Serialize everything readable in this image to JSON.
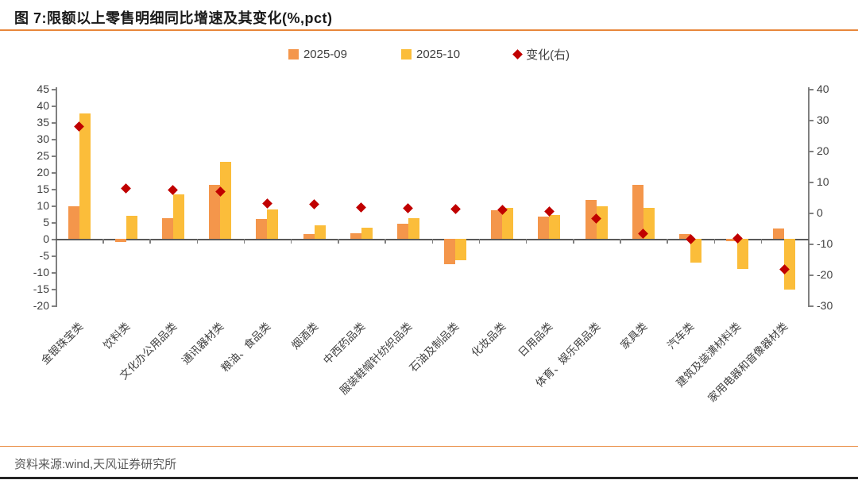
{
  "title": "图 7:限额以上零售明细同比增速及其变化(%,pct)",
  "legend": {
    "items": [
      {
        "label": "2025-09",
        "marker": "square",
        "color": "#F4964B"
      },
      {
        "label": "2025-10",
        "marker": "square",
        "color": "#FBBD3A"
      },
      {
        "label": "变化(右)",
        "marker": "diamond",
        "color": "#C00000"
      }
    ]
  },
  "footer": {
    "source": "资料来源:wind,天风证券研究所"
  },
  "colors": {
    "bar_sep": "#F4964B",
    "bar_oct": "#FBBD3A",
    "change_diamond": "#C00000",
    "rule_orange": "#E8873B",
    "axis_gray": "#808080",
    "text_gray": "#404040"
  },
  "chart_data": {
    "type": "bar",
    "title": "限额以上零售明细同比增速及其变化(%,pct)",
    "categories": [
      "金银珠宝类",
      "饮料类",
      "文化办公用品类",
      "通讯器材类",
      "粮油、食品类",
      "烟酒类",
      "中西药品类",
      "服装鞋帽针纺织品类",
      "石油及制品类",
      "化妆品类",
      "日用品类",
      "体育、娱乐用品类",
      "家具类",
      "汽车类",
      "建筑及装潢材料类",
      "家用电器和音像器材类"
    ],
    "series": [
      {
        "name": "2025-09",
        "type": "bar",
        "axis": "left",
        "color": "#F4964B",
        "values": [
          9.8,
          -1.0,
          6.2,
          16.1,
          6.0,
          1.4,
          1.7,
          4.6,
          -7.7,
          8.5,
          6.6,
          11.7,
          16.1,
          1.4,
          -0.6,
          3.0
        ]
      },
      {
        "name": "2025-10",
        "type": "bar",
        "axis": "left",
        "color": "#FBBD3A",
        "values": [
          37.6,
          6.9,
          13.4,
          23.0,
          8.9,
          4.0,
          3.3,
          6.1,
          -6.5,
          9.3,
          7.1,
          9.7,
          9.3,
          -7.2,
          -9.0,
          -15.3
        ]
      },
      {
        "name": "变化(右)",
        "type": "scatter",
        "marker": "diamond",
        "axis": "right",
        "color": "#C00000",
        "values": [
          27.8,
          7.9,
          7.2,
          6.9,
          2.9,
          2.6,
          1.6,
          1.5,
          1.2,
          0.8,
          0.5,
          -2.0,
          -6.8,
          -8.6,
          -8.4,
          -18.3
        ]
      }
    ],
    "left_axis": {
      "min": -20,
      "max": 45,
      "step": 5,
      "ticks": [
        45,
        40,
        35,
        30,
        25,
        20,
        15,
        10,
        5,
        0,
        -5,
        -10,
        -15,
        -20
      ]
    },
    "right_axis": {
      "min": -30,
      "max": 40,
      "step": 10,
      "ticks": [
        40,
        30,
        20,
        10,
        0,
        -10,
        -20,
        -30
      ]
    },
    "grid": false,
    "legend_position": "top",
    "xlabel": "",
    "ylabel": ""
  }
}
